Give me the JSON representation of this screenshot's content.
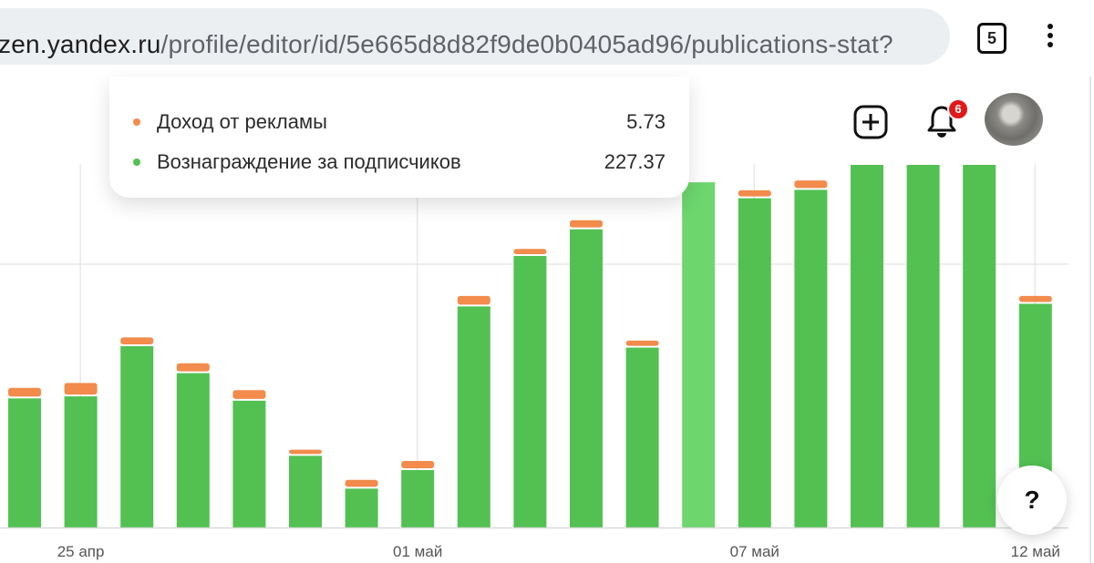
{
  "browser": {
    "url_host": "zen.yandex.ru",
    "url_path": "/profile/editor/id/5e665d8d82f9de0b0405ad96/publications-stat?",
    "tab_count": "5"
  },
  "header": {
    "notifications_count": "6"
  },
  "tooltip": {
    "rows": [
      {
        "label": "Доход от рекламы",
        "value": "5.73",
        "color": "#f28b4b"
      },
      {
        "label": "Вознаграждение за подписчиков",
        "value": "227.37",
        "color": "#52c152"
      }
    ]
  },
  "help_label": "?",
  "chart_data": {
    "type": "bar",
    "stacked": true,
    "x_tick_labels": [
      "25 апр",
      "01 май",
      "07 май",
      "12 май"
    ],
    "series": [
      {
        "name": "Вознаграждение за подписчиков",
        "color": "#52c152",
        "values": [
          44.5,
          45.2,
          62.5,
          53.2,
          43.7,
          24.7,
          13.4,
          19.8,
          76.2,
          93.6,
          102.8,
          62.0,
          119.0,
          113.5,
          116.4,
          125.0,
          125.0,
          125.0,
          77.1
        ]
      },
      {
        "name": "Доход от рекламы",
        "color": "#f28b4b",
        "values": [
          3.0,
          4.0,
          2.4,
          2.8,
          3.0,
          1.5,
          2.4,
          2.5,
          3.0,
          1.8,
          2.5,
          1.8,
          0.0,
          2.1,
          2.6,
          0.0,
          0.0,
          0.0,
          2.1
        ]
      }
    ],
    "highlighted_index": 12,
    "highlight_color": "#6dd66d",
    "tick_indices": [
      1,
      7,
      13,
      18
    ],
    "gridlines": true,
    "ylim": [
      0,
      125
    ]
  }
}
